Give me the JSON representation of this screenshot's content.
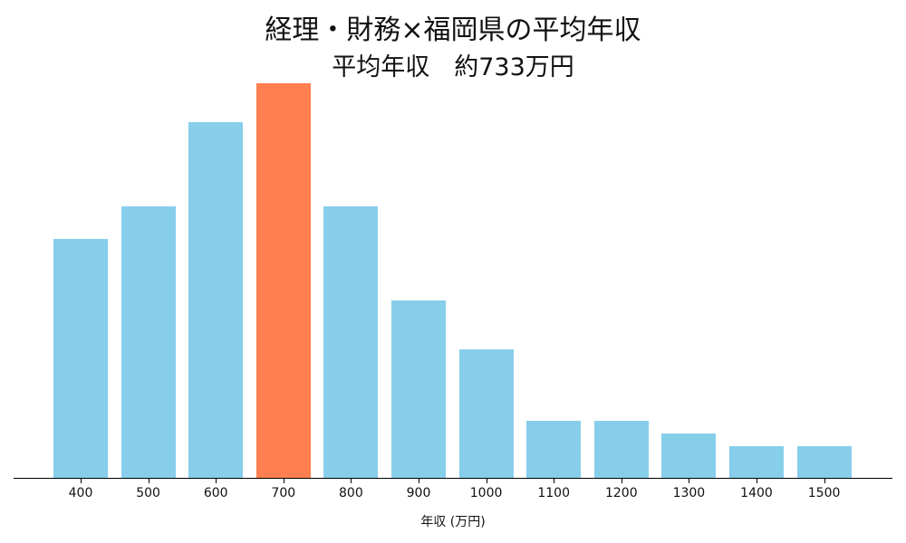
{
  "chart_data": {
    "type": "bar",
    "title": "経理・財務×福岡県の平均年収",
    "subtitle": "平均年収　約733万円",
    "xlabel": "年収 (万円)",
    "ylabel": "",
    "categories": [
      "400",
      "500",
      "600",
      "700",
      "800",
      "900",
      "1000",
      "1100",
      "1200",
      "1300",
      "1400",
      "1500"
    ],
    "values": [
      37,
      42,
      55,
      61,
      42,
      27.5,
      20,
      9,
      9,
      7,
      5,
      5
    ],
    "highlight_index": 3,
    "colors": {
      "default": "#87CEEB",
      "highlight": "#FF7F50"
    },
    "grid": false,
    "y_axis_visible": false
  }
}
